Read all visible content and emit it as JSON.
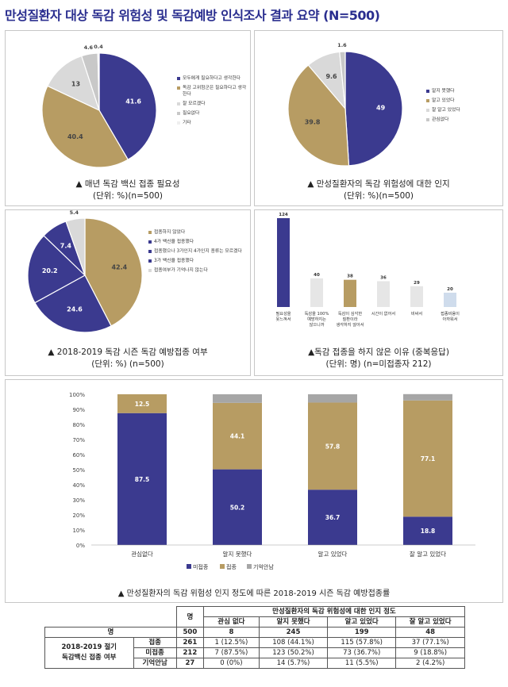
{
  "title": "만성질환자 대상 독감 위험성 및 독감예방 인식조사 결과 요약  (N=500)",
  "colors": {
    "navy": "#3b3a8f",
    "tan": "#b79c63",
    "gray": "#c8c8c8",
    "lightgray": "#e6e6e6",
    "pale": "#cfdcec"
  },
  "chart_data": [
    {
      "type": "pie",
      "categories": [
        "모두에게 필요하다고 생각한다",
        "독감 고위험군은 필요하다고 생각한다",
        "잘 모르겠다",
        "필요없다",
        "기타"
      ],
      "values": [
        41.6,
        40.4,
        13,
        4.6,
        0.4
      ],
      "value_labels": [
        "41.6",
        "40.4",
        "13",
        "4.6",
        "0.4"
      ],
      "colors": [
        "#3b3a8f",
        "#b79c63",
        "#d9d9d9",
        "#c8c8c8",
        "#efefef"
      ],
      "title": "▲ 매년 독감 백신 접종 필요성",
      "subtitle": "(단위: %)(n=500)"
    },
    {
      "type": "pie",
      "categories": [
        "알지 못했다",
        "알고 있었다",
        "잘 알고 있었다",
        "관심없다"
      ],
      "values": [
        49,
        39.8,
        9.6,
        1.6
      ],
      "value_labels": [
        "49",
        "39.8",
        "9.6",
        "1.6"
      ],
      "colors": [
        "#3b3a8f",
        "#b79c63",
        "#d9d9d9",
        "#c8c8c8"
      ],
      "title": "▲ 만성질환자의 독감 위험성에 대한 인지",
      "subtitle": "(단위: %)(n=500)"
    },
    {
      "type": "pie",
      "categories": [
        "접종하지 않았다",
        "4가 백신을 접종했다",
        "접종했으나 3가인지 4가인지 종류는 모르겠다",
        "3가 백신을 접종했다",
        "접종여부가 기억나지 않는다"
      ],
      "values": [
        42.4,
        24.6,
        20.2,
        7.4,
        5.4
      ],
      "value_labels": [
        "42.4",
        "24.6",
        "20.2",
        "7.4",
        "5.4"
      ],
      "colors": [
        "#b79c63",
        "#3b3a8f",
        "#3b3a8f",
        "#3b3a8f",
        "#d9d9d9"
      ],
      "title": "▲ 2018-2019 독감 시즌 독감 예방접종 여부",
      "subtitle": "(단위: %) (n=500)"
    },
    {
      "type": "bar",
      "categories": [
        "필요성을 못느껴서",
        "독감을 100% 예방하지는 않으니까",
        "독감이 심각한 질환이라 생각하지 않아서",
        "시간이 없어서",
        "비싸서",
        "접종비용이 아까워서"
      ],
      "values": [
        124,
        40,
        38,
        36,
        29,
        20
      ],
      "colors": [
        "#3b3a8f",
        "#e6e6e6",
        "#b79c63",
        "#e6e6e6",
        "#e6e6e6",
        "#cfdcec"
      ],
      "title": "▲독감 접종을 하지 않은 이유 (중복응답)",
      "subtitle": "(단위: 명) (n=미접종자 212)"
    },
    {
      "type": "bar",
      "stacked": true,
      "categories": [
        "관심없다",
        "알지 못했다",
        "알고 있었다",
        "잘 알고 있었다"
      ],
      "series": [
        {
          "name": "미접종",
          "values": [
            87.5,
            50.2,
            36.7,
            18.8
          ],
          "color": "#3b3a8f"
        },
        {
          "name": "접종",
          "values": [
            12.5,
            44.1,
            57.8,
            77.1
          ],
          "color": "#b79c63"
        },
        {
          "name": "기억안남",
          "values": [
            0,
            5.7,
            5.5,
            4.2
          ],
          "color": "#a6a6a6"
        }
      ],
      "yticks": [
        "0%",
        "10%",
        "20%",
        "30%",
        "40%",
        "50%",
        "60%",
        "70%",
        "80%",
        "90%",
        "100%"
      ],
      "ylim": [
        0,
        100
      ],
      "title": "▲ 만성질환자의 독감 위험성 인지 정도에 따른 2018-2019 시즌 독감 예방접종률"
    }
  ],
  "table": {
    "header_group": "만성질환자의 독감 위험성에 대한 인지 정도",
    "col_total": "명",
    "cols": [
      "관심 없다",
      "알지 못했다",
      "알고 있었다",
      "잘 알고 있었다"
    ],
    "total_row_label": "명",
    "total_row": [
      "500",
      "8",
      "245",
      "199",
      "48"
    ],
    "row_group_label_1": "2018-2019 절기",
    "row_group_label_2": "독감백신 접종 여부",
    "rows": [
      {
        "label": "접종",
        "cells": [
          "261",
          "1 (12.5%)",
          "108 (44.1%)",
          "115 (57.8%)",
          "37 (77.1%)"
        ]
      },
      {
        "label": "미접종",
        "cells": [
          "212",
          "7 (87.5%)",
          "123 (50.2%)",
          "73 (36.7%)",
          "9 (18.8%)"
        ]
      },
      {
        "label": "기억안남",
        "cells": [
          "27",
          "0 (0%)",
          "14 (5.7%)",
          "11 (5.5%)",
          "2 (4.2%)"
        ]
      }
    ]
  }
}
